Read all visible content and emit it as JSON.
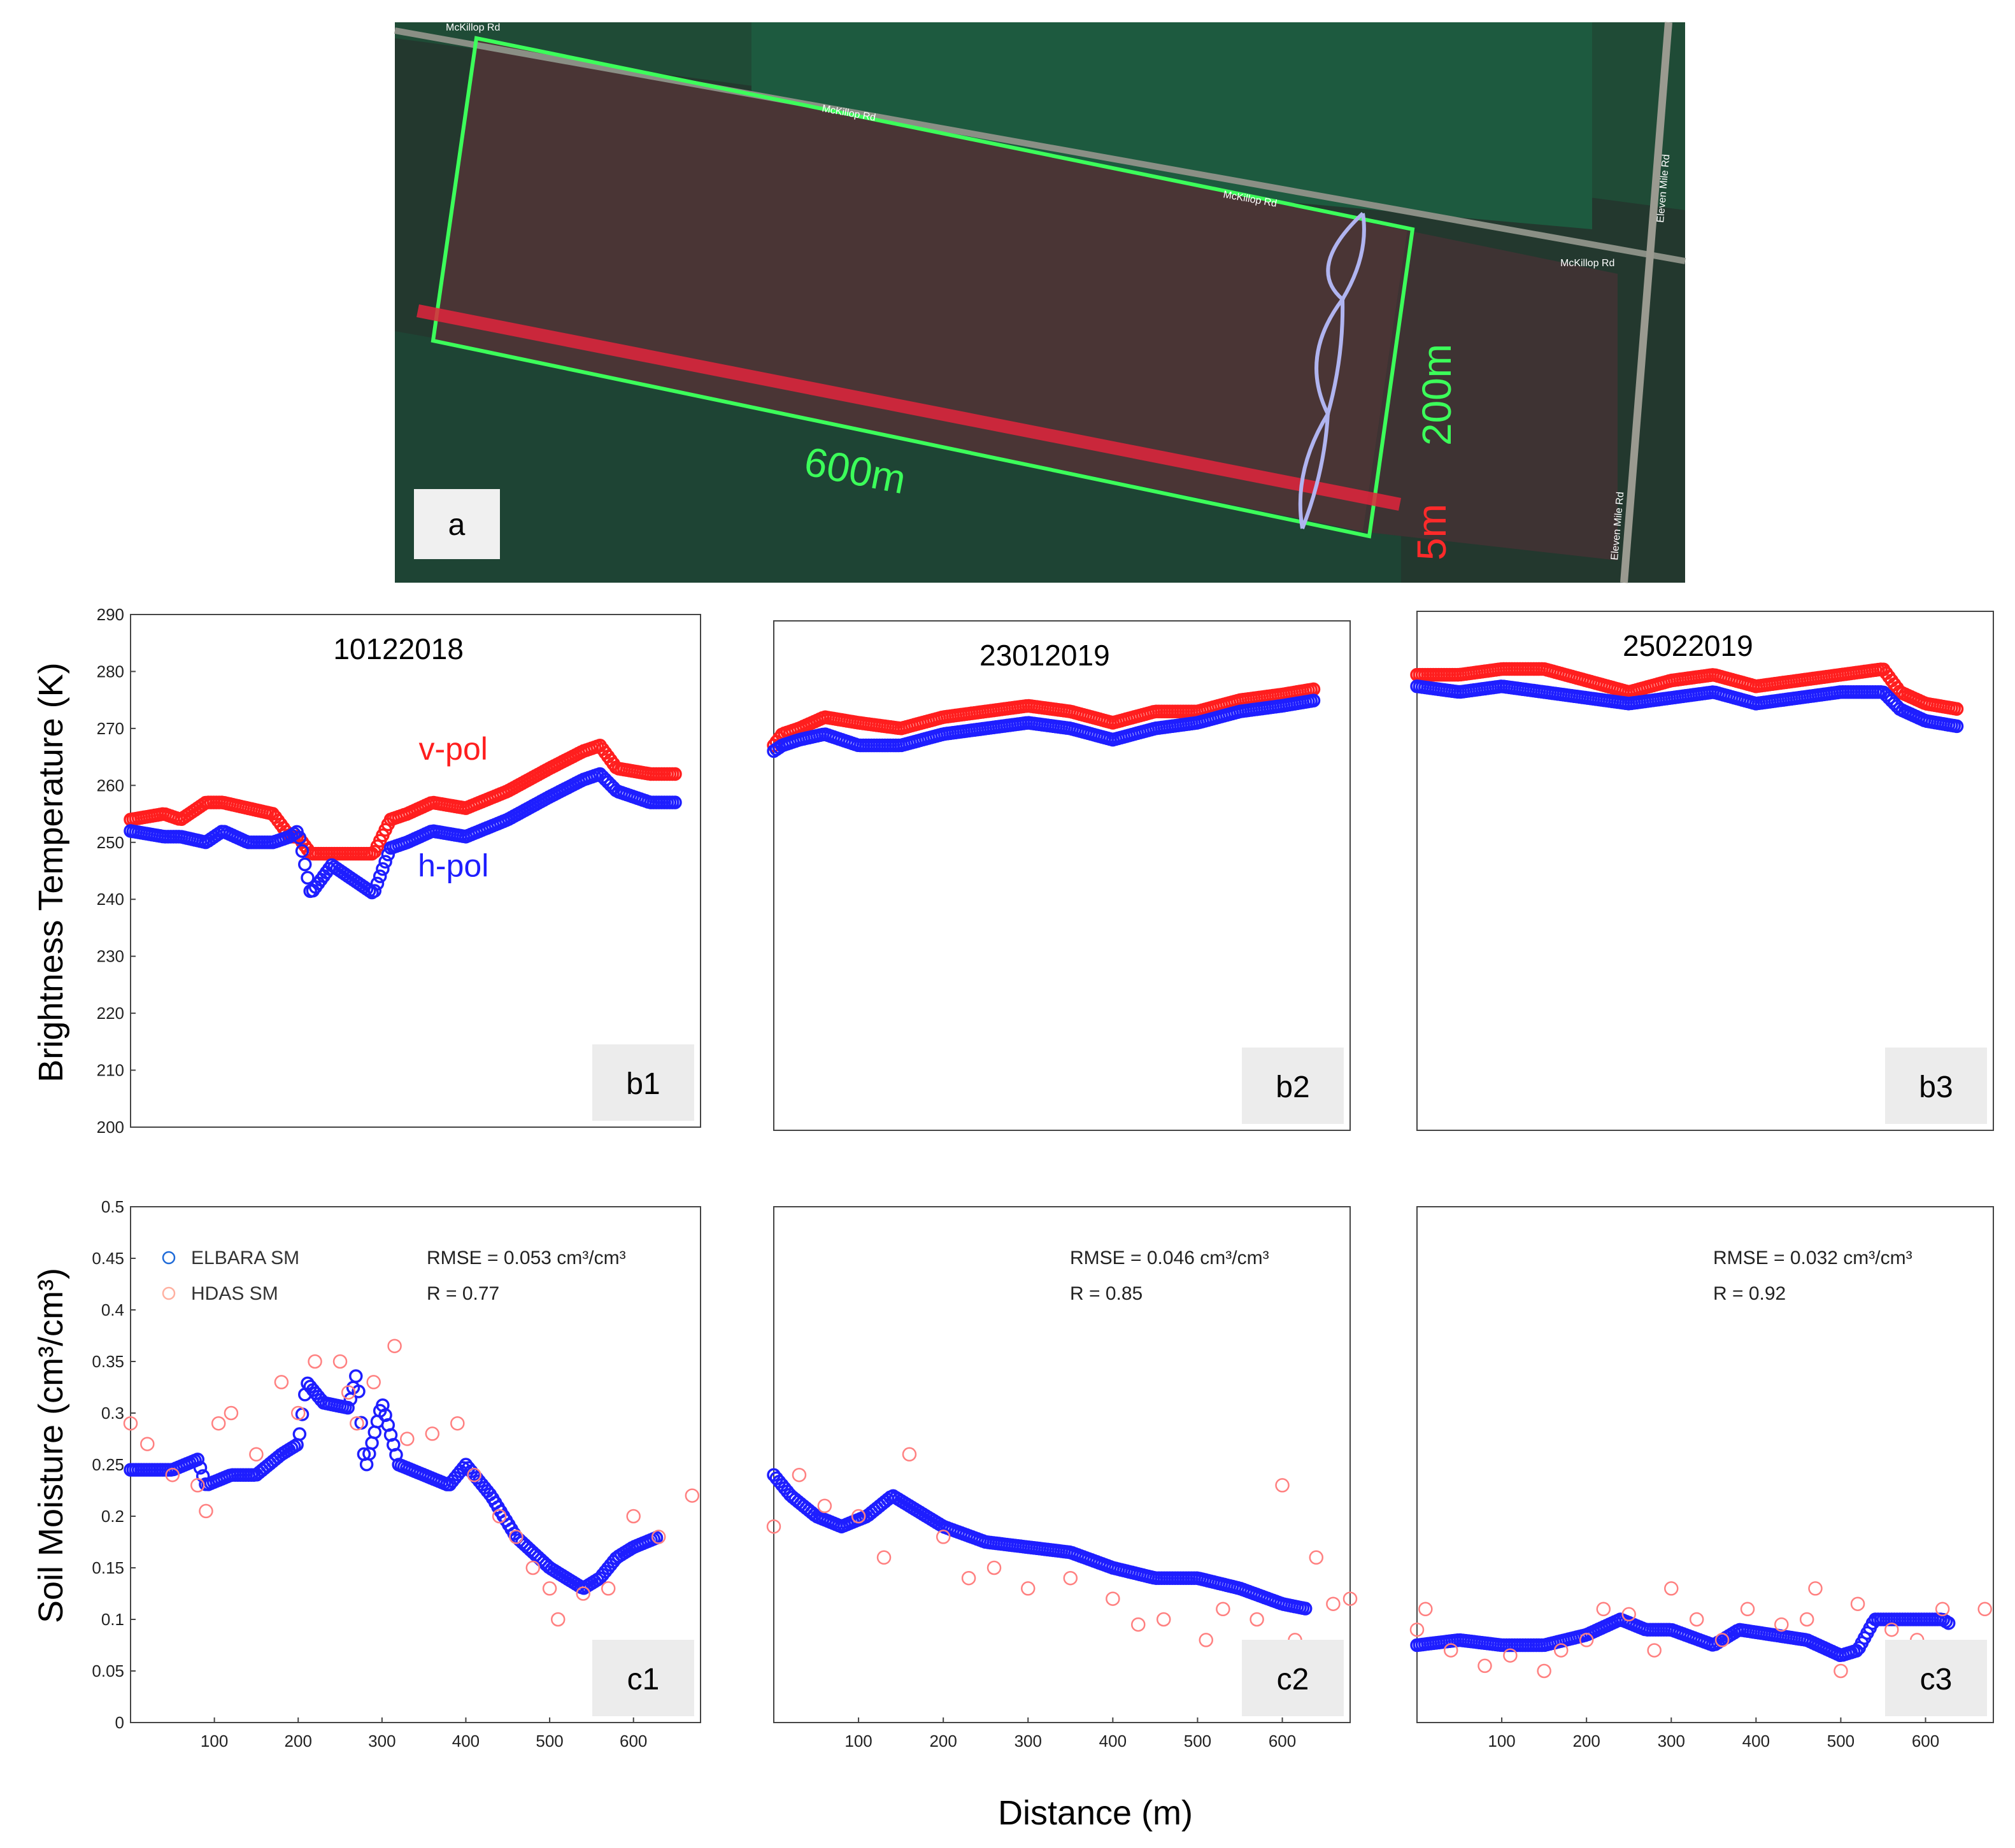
{
  "figure": {
    "shared_ylabel_top": "Brightness Temperature  (K)",
    "shared_ylabel_bottom": "Soil Moisture (cm³/cm³)",
    "shared_xlabel": "Distance (m)"
  },
  "photo_panel": {
    "label": "a",
    "length_label": "600m",
    "width_label": "200m",
    "strip_label": "5m",
    "road_labels": [
      "McKillop Rd",
      "McKillop Rd",
      "McKillop Rd",
      "McKillop Rd",
      "Eleven Mile Rd",
      "Eleven Mile Rd"
    ]
  },
  "chart_data": [
    {
      "type": "scatter",
      "panel_label": "b1",
      "title": "10122018",
      "xlim": [
        0,
        680
      ],
      "ylim": [
        200,
        290
      ],
      "yticks": [
        200,
        210,
        220,
        230,
        240,
        250,
        260,
        270,
        280,
        290
      ],
      "series_labels": {
        "v": "v-pol",
        "h": "h-pol"
      },
      "series": [
        {
          "name": "v-pol",
          "color": "#ff1e1e",
          "x": [
            0,
            40,
            60,
            90,
            110,
            140,
            170,
            190,
            200,
            215,
            240,
            270,
            290,
            310,
            330,
            360,
            400,
            450,
            500,
            540,
            560,
            580,
            620,
            650
          ],
          "y": [
            254,
            255,
            254,
            257,
            257,
            256,
            255,
            251,
            251,
            248,
            248,
            248,
            248,
            254,
            255,
            257,
            256,
            259,
            263,
            266,
            267,
            263,
            262,
            262
          ]
        },
        {
          "name": "h-pol",
          "color": "#1e1eff",
          "x": [
            0,
            40,
            60,
            90,
            110,
            140,
            170,
            190,
            200,
            215,
            240,
            270,
            290,
            310,
            330,
            360,
            400,
            450,
            500,
            540,
            560,
            580,
            620,
            650
          ],
          "y": [
            252,
            251,
            251,
            250,
            252,
            250,
            250,
            251,
            252,
            241,
            246,
            243,
            241,
            249,
            250,
            252,
            251,
            254,
            258,
            261,
            262,
            259,
            257,
            257
          ]
        }
      ]
    },
    {
      "type": "scatter",
      "panel_label": "b2",
      "title": "23012019",
      "xlim": [
        0,
        680
      ],
      "ylim": [
        200,
        290
      ],
      "series": [
        {
          "name": "v-pol",
          "color": "#ff1e1e",
          "x": [
            0,
            10,
            30,
            60,
            100,
            150,
            200,
            250,
            300,
            350,
            400,
            450,
            500,
            550,
            600,
            640
          ],
          "y": [
            268,
            270,
            271,
            273,
            272,
            271,
            273,
            274,
            275,
            274,
            272,
            274,
            274,
            276,
            277,
            278
          ]
        },
        {
          "name": "h-pol",
          "color": "#1e1eff",
          "x": [
            0,
            10,
            30,
            60,
            100,
            150,
            200,
            250,
            300,
            350,
            400,
            450,
            500,
            550,
            600,
            640
          ],
          "y": [
            267,
            268,
            269,
            270,
            268,
            268,
            270,
            271,
            272,
            271,
            269,
            271,
            272,
            274,
            275,
            276
          ]
        }
      ]
    },
    {
      "type": "scatter",
      "panel_label": "b3",
      "title": "25022019",
      "xlim": [
        0,
        680
      ],
      "ylim": [
        200,
        290
      ],
      "series": [
        {
          "name": "v-pol",
          "color": "#ff1e1e",
          "x": [
            0,
            50,
            100,
            150,
            200,
            250,
            300,
            350,
            400,
            450,
            500,
            550,
            570,
            600,
            640
          ],
          "y": [
            279,
            279,
            280,
            280,
            278,
            276,
            278,
            279,
            277,
            278,
            279,
            280,
            276,
            274,
            273
          ]
        },
        {
          "name": "h-pol",
          "color": "#1e1eff",
          "x": [
            0,
            50,
            100,
            150,
            200,
            250,
            300,
            350,
            400,
            450,
            500,
            550,
            570,
            600,
            640
          ],
          "y": [
            277,
            276,
            277,
            276,
            275,
            274,
            275,
            276,
            274,
            275,
            276,
            276,
            273,
            271,
            270
          ]
        }
      ]
    },
    {
      "type": "scatter",
      "panel_label": "c1",
      "xlim": [
        0,
        680
      ],
      "ylim": [
        0,
        0.5
      ],
      "xticks": [
        100,
        200,
        300,
        400,
        500,
        600
      ],
      "yticks": [
        0,
        0.05,
        0.1,
        0.15,
        0.2,
        0.25,
        0.3,
        0.35,
        0.4,
        0.45,
        0.5
      ],
      "legend": [
        "ELBARA SM",
        "HDAS SM"
      ],
      "stats": [
        "RMSE = 0.053 cm³/cm³",
        "R = 0.77"
      ],
      "series": [
        {
          "name": "ELBARA SM",
          "color": "#1e1eff",
          "x": [
            0,
            30,
            50,
            80,
            90,
            120,
            150,
            180,
            200,
            210,
            230,
            260,
            270,
            280,
            300,
            320,
            350,
            380,
            400,
            430,
            460,
            500,
            540,
            560,
            580,
            600,
            630
          ],
          "y": [
            0.245,
            0.245,
            0.245,
            0.255,
            0.23,
            0.24,
            0.24,
            0.26,
            0.27,
            0.33,
            0.31,
            0.305,
            0.34,
            0.245,
            0.31,
            0.25,
            0.24,
            0.23,
            0.25,
            0.22,
            0.18,
            0.15,
            0.13,
            0.14,
            0.16,
            0.17,
            0.18
          ]
        },
        {
          "name": "HDAS SM",
          "color": "#ff8080",
          "x": [
            0,
            20,
            50,
            80,
            90,
            105,
            120,
            150,
            180,
            200,
            220,
            250,
            260,
            270,
            290,
            315,
            330,
            360,
            390,
            410,
            440,
            460,
            480,
            500,
            510,
            540,
            570,
            600,
            630,
            670
          ],
          "y": [
            0.29,
            0.27,
            0.24,
            0.23,
            0.205,
            0.29,
            0.3,
            0.26,
            0.33,
            0.3,
            0.35,
            0.35,
            0.32,
            0.29,
            0.33,
            0.365,
            0.275,
            0.28,
            0.29,
            0.24,
            0.2,
            0.18,
            0.15,
            0.13,
            0.1,
            0.125,
            0.13,
            0.2,
            0.18,
            0.22
          ]
        }
      ]
    },
    {
      "type": "scatter",
      "panel_label": "c2",
      "xlim": [
        0,
        680
      ],
      "ylim": [
        0,
        0.5
      ],
      "xticks": [
        100,
        200,
        300,
        400,
        500,
        600
      ],
      "stats": [
        "RMSE = 0.046 cm³/cm³",
        "R = 0.85"
      ],
      "series": [
        {
          "name": "ELBARA SM",
          "color": "#1e1eff",
          "x": [
            0,
            20,
            50,
            80,
            110,
            140,
            160,
            200,
            250,
            300,
            350,
            400,
            450,
            500,
            550,
            600,
            630
          ],
          "y": [
            0.24,
            0.22,
            0.2,
            0.19,
            0.2,
            0.22,
            0.21,
            0.19,
            0.175,
            0.17,
            0.165,
            0.15,
            0.14,
            0.14,
            0.13,
            0.115,
            0.11
          ]
        },
        {
          "name": "HDAS SM",
          "color": "#ff8080",
          "x": [
            0,
            30,
            60,
            100,
            130,
            160,
            200,
            230,
            260,
            300,
            350,
            400,
            430,
            460,
            510,
            530,
            570,
            600,
            615,
            640,
            660,
            680
          ],
          "y": [
            0.19,
            0.24,
            0.21,
            0.2,
            0.16,
            0.26,
            0.18,
            0.14,
            0.15,
            0.13,
            0.14,
            0.12,
            0.095,
            0.1,
            0.08,
            0.11,
            0.1,
            0.23,
            0.08,
            0.16,
            0.115,
            0.12
          ]
        }
      ]
    },
    {
      "type": "scatter",
      "panel_label": "c3",
      "xlim": [
        0,
        680
      ],
      "ylim": [
        0,
        0.5
      ],
      "xticks": [
        100,
        200,
        300,
        400,
        500,
        600
      ],
      "stats": [
        "RMSE = 0.032 cm³/cm³",
        "R = 0.92"
      ],
      "series": [
        {
          "name": "ELBARA SM",
          "color": "#1e1eff",
          "x": [
            0,
            50,
            100,
            150,
            200,
            240,
            270,
            300,
            350,
            380,
            420,
            460,
            500,
            520,
            540,
            580,
            620,
            630
          ],
          "y": [
            0.075,
            0.08,
            0.075,
            0.075,
            0.085,
            0.1,
            0.09,
            0.09,
            0.075,
            0.09,
            0.085,
            0.08,
            0.065,
            0.07,
            0.1,
            0.1,
            0.1,
            0.095
          ]
        },
        {
          "name": "HDAS SM",
          "color": "#ff8080",
          "x": [
            0,
            10,
            40,
            80,
            110,
            150,
            170,
            200,
            220,
            250,
            280,
            300,
            330,
            360,
            390,
            430,
            460,
            470,
            500,
            520,
            560,
            590,
            620,
            670
          ],
          "y": [
            0.09,
            0.11,
            0.07,
            0.055,
            0.065,
            0.05,
            0.07,
            0.08,
            0.11,
            0.105,
            0.07,
            0.13,
            0.1,
            0.08,
            0.11,
            0.095,
            0.1,
            0.13,
            0.05,
            0.115,
            0.09,
            0.08,
            0.11,
            0.11
          ]
        }
      ]
    }
  ]
}
